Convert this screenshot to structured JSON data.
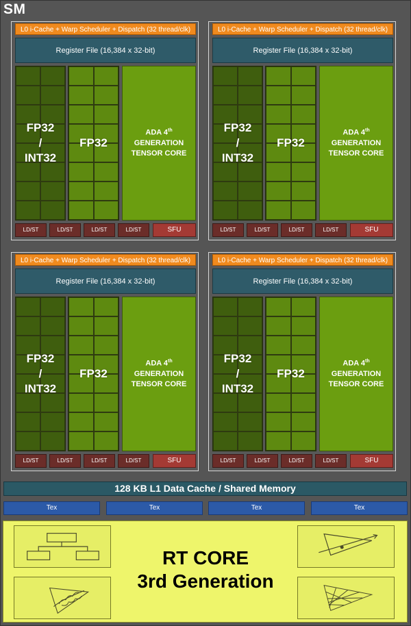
{
  "sm_label": "SM",
  "quadrant": {
    "l0_label": "L0 i-Cache + Warp Scheduler + Dispatch (32 thread/clk)",
    "register_file": "Register File (16,384 x 32-bit)",
    "fp32_int32_line1": "FP32",
    "fp32_int32_line2": "/",
    "fp32_int32_line3": "INT32",
    "fp32_label": "FP32",
    "tensor_line1": "ADA 4",
    "tensor_sup": "th",
    "tensor_line2": "GENERATION",
    "tensor_line3": "TENSOR CORE",
    "ldst_label": "LD/ST",
    "sfu_label": "SFU"
  },
  "l1_cache": "128 KB L1 Data Cache / Shared Memory",
  "tex_label": "Tex",
  "rt_core": {
    "line1": "RT CORE",
    "line2": "3rd Generation"
  },
  "colors": {
    "l0": "#f08a1e",
    "register_file": "#2f5b69",
    "fp32_int32": "#3f5e0e",
    "fp32": "#5e8a10",
    "tensor_core": "#6b9e10",
    "ldst": "#6b2d29",
    "sfu": "#a43a34",
    "l1": "#2b5965",
    "tex": "#2c5aa8",
    "rt_core": "#eef56b"
  }
}
